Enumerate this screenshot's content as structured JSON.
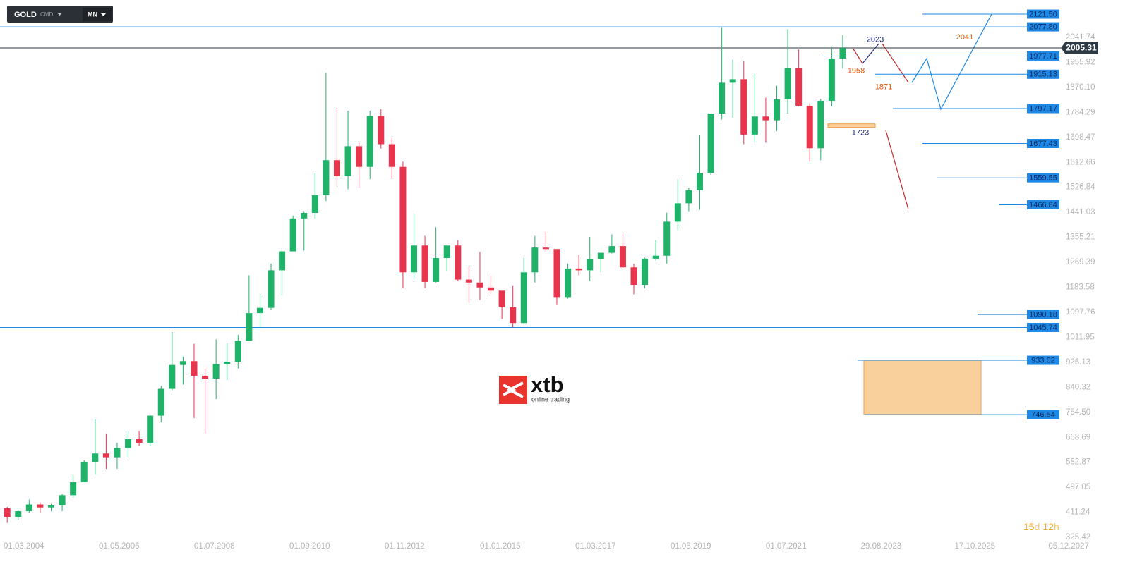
{
  "toolbar": {
    "symbol": "GOLD",
    "type": "CMD",
    "interval": "MN"
  },
  "logo": {
    "name": "xtb",
    "tagline": "online trading"
  },
  "countdown": {
    "days": "15",
    "days_unit": "d",
    "hours": "12",
    "hours_unit": "h"
  },
  "chart_data": {
    "type": "candlestick",
    "x": [
      "01.04.2004",
      "01.07.2004",
      "01.10.2004",
      "01.01.2005",
      "01.04.2005",
      "01.07.2005",
      "01.10.2005",
      "01.01.2006",
      "01.04.2006",
      "01.07.2006",
      "01.10.2006",
      "01.01.2007",
      "01.04.2007",
      "01.07.2007",
      "01.10.2007",
      "01.01.2008",
      "01.04.2008",
      "01.07.2008",
      "01.10.2008",
      "01.01.2009",
      "01.04.2009",
      "01.07.2009",
      "01.10.2009",
      "01.01.2010",
      "01.04.2010",
      "01.07.2010",
      "01.10.2010",
      "01.01.2011",
      "01.04.2011",
      "01.07.2011",
      "01.10.2011",
      "01.01.2012",
      "01.04.2012",
      "01.07.2012",
      "01.10.2012",
      "01.01.2013",
      "01.04.2013",
      "01.07.2013",
      "01.10.2013",
      "01.01.2014",
      "01.04.2014",
      "01.07.2014",
      "01.10.2014",
      "01.01.2015",
      "01.04.2015",
      "01.07.2015",
      "01.10.2015",
      "01.01.2016",
      "01.04.2016",
      "01.07.2016",
      "01.10.2016",
      "01.01.2017",
      "01.04.2017",
      "01.07.2017",
      "01.10.2017",
      "01.01.2018",
      "01.04.2018",
      "01.07.2018",
      "01.10.2018",
      "01.01.2019",
      "01.04.2019",
      "01.07.2019",
      "01.10.2019",
      "01.01.2020",
      "01.04.2020",
      "01.07.2020",
      "01.10.2020",
      "01.01.2021",
      "01.04.2021",
      "01.07.2021",
      "01.10.2021",
      "01.01.2022",
      "01.04.2022",
      "01.07.2022",
      "01.10.2022",
      "01.01.2023",
      "01.04.2023"
    ],
    "open": [
      425,
      395,
      415,
      438,
      428,
      435,
      470,
      515,
      583,
      613,
      600,
      632,
      662,
      650,
      743,
      835,
      917,
      930,
      880,
      870,
      920,
      928,
      1000,
      1095,
      1113,
      1242,
      1307,
      1420,
      1439,
      1500,
      1620,
      1565,
      1668,
      1597,
      1772,
      1675,
      1597,
      1235,
      1327,
      1202,
      1284,
      1327,
      1210,
      1200,
      1183,
      1172,
      1115,
      1061,
      1235,
      1320,
      1315,
      1150,
      1248,
      1242,
      1280,
      1302,
      1325,
      1252,
      1192,
      1282,
      1292,
      1409,
      1472,
      1517,
      1577,
      1780,
      1886,
      1898,
      1708,
      1770,
      1757,
      1829,
      1937,
      1807,
      1661,
      1824,
      1969
    ],
    "high": [
      430,
      420,
      455,
      445,
      440,
      475,
      540,
      590,
      730,
      680,
      650,
      690,
      690,
      745,
      845,
      1030,
      945,
      990,
      905,
      1005,
      990,
      1020,
      1225,
      1160,
      1265,
      1310,
      1430,
      1445,
      1575,
      1920,
      1800,
      1790,
      1680,
      1790,
      1795,
      1695,
      1615,
      1435,
      1360,
      1390,
      1330,
      1345,
      1255,
      1305,
      1225,
      1170,
      1190,
      1285,
      1360,
      1375,
      1310,
      1265,
      1295,
      1357,
      1300,
      1365,
      1365,
      1265,
      1285,
      1345,
      1440,
      1555,
      1525,
      1705,
      1765,
      2075,
      1965,
      1960,
      1915,
      1835,
      1875,
      2070,
      2000,
      1815,
      1830,
      2010,
      2050
    ],
    "low": [
      375,
      385,
      410,
      410,
      415,
      415,
      460,
      515,
      540,
      560,
      560,
      600,
      640,
      640,
      720,
      830,
      850,
      735,
      680,
      800,
      865,
      905,
      1000,
      1045,
      1105,
      1155,
      1310,
      1310,
      1420,
      1480,
      1530,
      1520,
      1525,
      1555,
      1660,
      1555,
      1180,
      1210,
      1180,
      1200,
      1240,
      1205,
      1130,
      1140,
      1160,
      1075,
      1045,
      1060,
      1200,
      1305,
      1125,
      1145,
      1225,
      1205,
      1235,
      1300,
      1250,
      1160,
      1180,
      1275,
      1265,
      1380,
      1445,
      1450,
      1570,
      1760,
      1765,
      1675,
      1680,
      1680,
      1720,
      1780,
      1805,
      1615,
      1620,
      1805,
      1935
    ],
    "close": [
      395,
      415,
      438,
      428,
      435,
      470,
      515,
      583,
      613,
      600,
      632,
      662,
      650,
      743,
      835,
      917,
      930,
      880,
      870,
      920,
      928,
      1000,
      1095,
      1113,
      1242,
      1307,
      1420,
      1439,
      1500,
      1620,
      1565,
      1668,
      1597,
      1772,
      1675,
      1597,
      1235,
      1327,
      1202,
      1284,
      1327,
      1210,
      1200,
      1183,
      1172,
      1115,
      1061,
      1235,
      1320,
      1315,
      1150,
      1248,
      1242,
      1280,
      1302,
      1325,
      1252,
      1192,
      1282,
      1292,
      1409,
      1472,
      1517,
      1577,
      1780,
      1886,
      1898,
      1708,
      1770,
      1757,
      1829,
      1937,
      1807,
      1661,
      1824,
      1969,
      2005
    ],
    "up_color": "#1fb36a",
    "down_color": "#e8344c",
    "ylim": [
      282,
      2170
    ],
    "yticks": [
      2041.74,
      1955.92,
      {
        "value": 1870.1,
        "label": "1870.10"
      },
      1784.29,
      1698.47,
      1612.66,
      1526.84,
      1441.03,
      1355.21,
      1269.39,
      1183.58,
      1097.76,
      1011.95,
      926.13,
      840.32,
      {
        "value": 754.5,
        "label": "754.50"
      },
      668.69,
      582.87,
      497.05,
      411.24,
      325.42
    ],
    "xticks": [
      "01.03.2004",
      "01.05.2006",
      "01.07.2008",
      "01.09.2010",
      "01.11.2012",
      "01.01.2015",
      "01.03.2017",
      "01.05.2019",
      "01.07.2021",
      "29.08.2023",
      "17.10.2025",
      "05.12.2027"
    ],
    "current_price": 2005.31,
    "levels": {
      "values": [
        2121.5,
        2077.8,
        1977.71,
        1915.13,
        1797.17,
        1677.43,
        1559.55,
        1466.84,
        1090.18,
        1045.74,
        933.02,
        746.54
      ],
      "value_labels": [
        "2121.50",
        "2077.80",
        "1977.71",
        "1915.13",
        "1797.17",
        "1677.43",
        "1559.55",
        "1466.84",
        "1090.18",
        "1045.74",
        "933.02",
        "746.54"
      ],
      "color": "#1e88e5"
    },
    "annotations": [
      {
        "value": 2023,
        "color": "#1a237e"
      },
      {
        "value": 2041,
        "color": "#e65100"
      },
      {
        "value": 1958,
        "color": "#e65100"
      },
      {
        "value": 1871,
        "color": "#e65100"
      },
      {
        "value": 1723,
        "color": "#1a237e"
      }
    ]
  }
}
